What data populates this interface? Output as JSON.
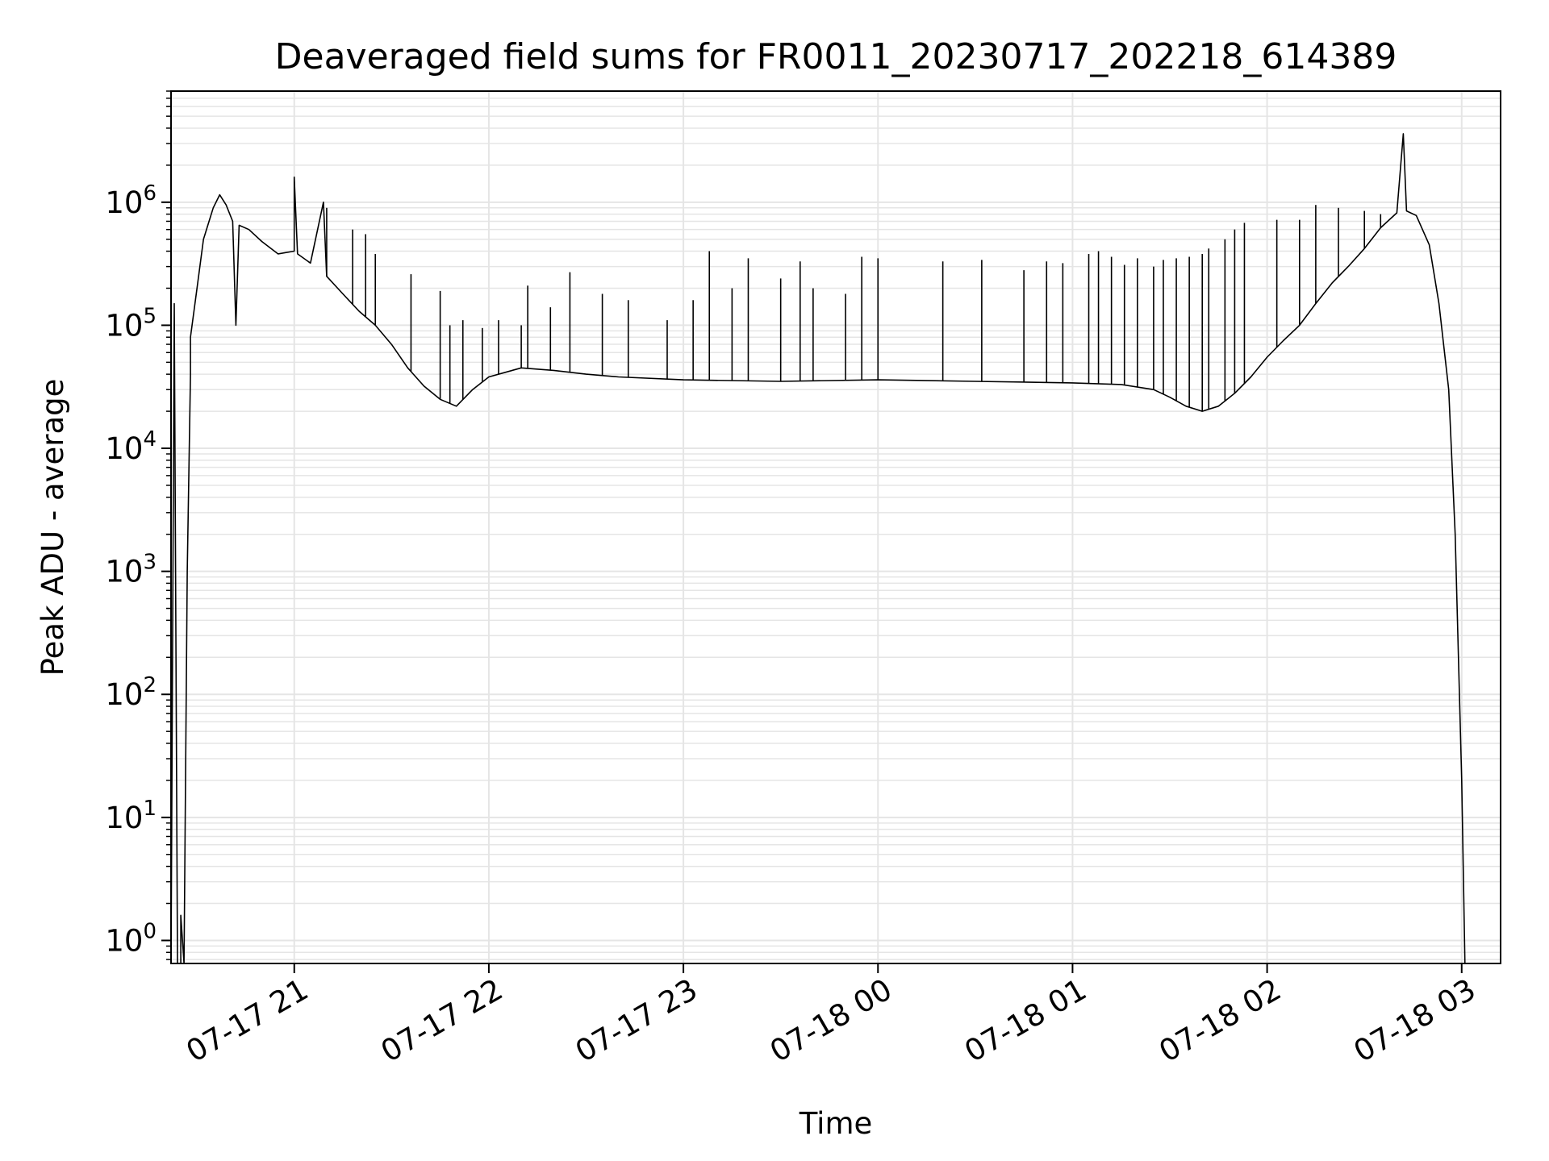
{
  "chart_data": {
    "type": "line",
    "title": "Deaveraged field sums for FR0011_20230717_202218_614389",
    "xlabel": "Time",
    "ylabel": "Peak ADU - average",
    "yscale": "log",
    "grid": true,
    "line_color": "#000000",
    "grid_color": "#e5e5e5",
    "xlim": [
      "2023-07-17 20:22",
      "2023-07-18 03:12"
    ],
    "ylim": [
      0.65,
      8000000
    ],
    "x_ticks": [
      {
        "value": "2023-07-17 21:00",
        "label": "07-17 21"
      },
      {
        "value": "2023-07-17 22:00",
        "label": "07-17 22"
      },
      {
        "value": "2023-07-17 23:00",
        "label": "07-17 23"
      },
      {
        "value": "2023-07-18 00:00",
        "label": "07-18 00"
      },
      {
        "value": "2023-07-18 01:00",
        "label": "07-18 01"
      },
      {
        "value": "2023-07-18 02:00",
        "label": "07-18 02"
      },
      {
        "value": "2023-07-18 03:00",
        "label": "07-18 03"
      }
    ],
    "y_ticks": [
      {
        "value": 1,
        "base": "10",
        "exp": "0"
      },
      {
        "value": 10,
        "base": "10",
        "exp": "1"
      },
      {
        "value": 100,
        "base": "10",
        "exp": "2"
      },
      {
        "value": 1000,
        "base": "10",
        "exp": "3"
      },
      {
        "value": 10000,
        "base": "10",
        "exp": "4"
      },
      {
        "value": 100000,
        "base": "10",
        "exp": "5"
      },
      {
        "value": 1000000,
        "base": "10",
        "exp": "6"
      }
    ],
    "series": [
      {
        "points": [
          [
            "2023-07-17 20:22",
            0.65
          ],
          [
            "2023-07-17 20:23",
            150000
          ],
          [
            "2023-07-17 20:24",
            0.65
          ],
          [
            "2023-07-17 20:25",
            0.65
          ],
          [
            "2023-07-17 20:25",
            1.6
          ],
          [
            "2023-07-17 20:26",
            0.65
          ],
          [
            "2023-07-17 20:27",
            1000
          ],
          [
            "2023-07-17 20:28",
            40000
          ],
          [
            "2023-07-17 20:28",
            80000
          ],
          [
            "2023-07-17 20:30",
            200000
          ],
          [
            "2023-07-17 20:32",
            500000
          ],
          [
            "2023-07-17 20:35",
            900000
          ],
          [
            "2023-07-17 20:37",
            1150000
          ],
          [
            "2023-07-17 20:39",
            950000
          ],
          [
            "2023-07-17 20:41",
            700000
          ],
          [
            "2023-07-17 20:42",
            100000
          ],
          [
            "2023-07-17 20:43",
            650000
          ],
          [
            "2023-07-17 20:46",
            600000
          ],
          [
            "2023-07-17 20:50",
            480000
          ],
          [
            "2023-07-17 20:55",
            380000
          ],
          [
            "2023-07-17 21:00",
            400000
          ],
          [
            "2023-07-17 21:00",
            1600000
          ],
          [
            "2023-07-17 21:01",
            380000
          ],
          [
            "2023-07-17 21:05",
            320000
          ],
          [
            "2023-07-17 21:09",
            1000000
          ],
          [
            "2023-07-17 21:10",
            250000
          ],
          [
            "2023-07-17 21:15",
            180000
          ],
          [
            "2023-07-17 21:20",
            130000
          ],
          [
            "2023-07-17 21:25",
            100000
          ],
          [
            "2023-07-17 21:30",
            70000
          ],
          [
            "2023-07-17 21:35",
            45000
          ],
          [
            "2023-07-17 21:40",
            32000
          ],
          [
            "2023-07-17 21:45",
            25000
          ],
          [
            "2023-07-17 21:50",
            22000
          ],
          [
            "2023-07-17 21:55",
            30000
          ],
          [
            "2023-07-17 22:00",
            38000
          ],
          [
            "2023-07-17 22:10",
            45000
          ],
          [
            "2023-07-17 22:20",
            43000
          ],
          [
            "2023-07-17 22:30",
            40000
          ],
          [
            "2023-07-17 22:40",
            38000
          ],
          [
            "2023-07-17 23:00",
            36000
          ],
          [
            "2023-07-17 23:30",
            35000
          ],
          [
            "2023-07-18 00:00",
            36000
          ],
          [
            "2023-07-18 00:30",
            35000
          ],
          [
            "2023-07-18 01:00",
            34000
          ],
          [
            "2023-07-18 01:15",
            33000
          ],
          [
            "2023-07-18 01:25",
            30000
          ],
          [
            "2023-07-18 01:30",
            26000
          ],
          [
            "2023-07-18 01:35",
            22000
          ],
          [
            "2023-07-18 01:40",
            20000
          ],
          [
            "2023-07-18 01:45",
            22000
          ],
          [
            "2023-07-18 01:50",
            28000
          ],
          [
            "2023-07-18 01:55",
            38000
          ],
          [
            "2023-07-18 02:00",
            55000
          ],
          [
            "2023-07-18 02:05",
            75000
          ],
          [
            "2023-07-18 02:10",
            100000
          ],
          [
            "2023-07-18 02:15",
            150000
          ],
          [
            "2023-07-18 02:20",
            220000
          ],
          [
            "2023-07-18 02:25",
            300000
          ],
          [
            "2023-07-18 02:30",
            420000
          ],
          [
            "2023-07-18 02:35",
            620000
          ],
          [
            "2023-07-18 02:40",
            820000
          ],
          [
            "2023-07-18 02:42",
            3600000
          ],
          [
            "2023-07-18 02:43",
            850000
          ],
          [
            "2023-07-18 02:46",
            780000
          ],
          [
            "2023-07-18 02:50",
            450000
          ],
          [
            "2023-07-18 02:53",
            150000
          ],
          [
            "2023-07-18 02:56",
            30000
          ],
          [
            "2023-07-18 02:58",
            2000
          ],
          [
            "2023-07-18 03:00",
            20
          ],
          [
            "2023-07-18 03:01",
            0.65
          ]
        ]
      }
    ],
    "spikes": [
      [
        "2023-07-17 21:10",
        900000
      ],
      [
        "2023-07-17 21:18",
        600000
      ],
      [
        "2023-07-17 21:22",
        550000
      ],
      [
        "2023-07-17 21:25",
        380000
      ],
      [
        "2023-07-17 21:36",
        260000
      ],
      [
        "2023-07-17 21:45",
        190000
      ],
      [
        "2023-07-17 21:48",
        100000
      ],
      [
        "2023-07-17 21:52",
        110000
      ],
      [
        "2023-07-17 21:58",
        95000
      ],
      [
        "2023-07-17 22:03",
        110000
      ],
      [
        "2023-07-17 22:10",
        100000
      ],
      [
        "2023-07-17 22:12",
        210000
      ],
      [
        "2023-07-17 22:19",
        140000
      ],
      [
        "2023-07-17 22:25",
        270000
      ],
      [
        "2023-07-17 22:35",
        180000
      ],
      [
        "2023-07-17 22:43",
        160000
      ],
      [
        "2023-07-17 22:55",
        110000
      ],
      [
        "2023-07-17 23:03",
        160000
      ],
      [
        "2023-07-17 23:08",
        400000
      ],
      [
        "2023-07-17 23:15",
        200000
      ],
      [
        "2023-07-17 23:20",
        350000
      ],
      [
        "2023-07-17 23:30",
        240000
      ],
      [
        "2023-07-17 23:36",
        330000
      ],
      [
        "2023-07-17 23:40",
        200000
      ],
      [
        "2023-07-17 23:50",
        180000
      ],
      [
        "2023-07-17 23:55",
        360000
      ],
      [
        "2023-07-18 00:00",
        350000
      ],
      [
        "2023-07-18 00:20",
        330000
      ],
      [
        "2023-07-18 00:32",
        340000
      ],
      [
        "2023-07-18 00:45",
        280000
      ],
      [
        "2023-07-18 00:52",
        330000
      ],
      [
        "2023-07-18 00:57",
        320000
      ],
      [
        "2023-07-18 01:05",
        380000
      ],
      [
        "2023-07-18 01:08",
        400000
      ],
      [
        "2023-07-18 01:12",
        360000
      ],
      [
        "2023-07-18 01:16",
        310000
      ],
      [
        "2023-07-18 01:20",
        350000
      ],
      [
        "2023-07-18 01:25",
        300000
      ],
      [
        "2023-07-18 01:28",
        340000
      ],
      [
        "2023-07-18 01:32",
        350000
      ],
      [
        "2023-07-18 01:36",
        360000
      ],
      [
        "2023-07-18 01:40",
        380000
      ],
      [
        "2023-07-18 01:42",
        420000
      ],
      [
        "2023-07-18 01:47",
        500000
      ],
      [
        "2023-07-18 01:50",
        600000
      ],
      [
        "2023-07-18 01:53",
        680000
      ],
      [
        "2023-07-18 02:03",
        720000
      ],
      [
        "2023-07-18 02:10",
        720000
      ],
      [
        "2023-07-18 02:15",
        950000
      ],
      [
        "2023-07-18 02:22",
        900000
      ],
      [
        "2023-07-18 02:30",
        850000
      ],
      [
        "2023-07-18 02:35",
        800000
      ]
    ]
  }
}
